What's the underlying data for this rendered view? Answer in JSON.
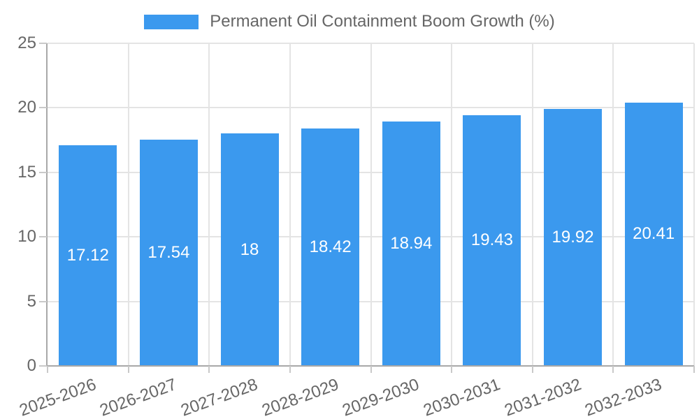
{
  "legend": {
    "label": "Permanent Oil Containment Boom Growth (%)"
  },
  "chart_data": {
    "type": "bar",
    "title": "Permanent Oil Containment Boom Growth (%)",
    "categories": [
      "2025-2026",
      "2026-2027",
      "2027-2028",
      "2028-2029",
      "2029-2030",
      "2030-2031",
      "2031-2032",
      "2032-2033"
    ],
    "values": [
      17.12,
      17.54,
      18,
      18.42,
      18.94,
      19.43,
      19.92,
      20.41
    ],
    "value_labels": [
      "17.12",
      "17.54",
      "18",
      "18.42",
      "18.94",
      "19.43",
      "19.92",
      "20.41"
    ],
    "series": [
      {
        "name": "Permanent Oil Containment Boom Growth (%)",
        "values": [
          17.12,
          17.54,
          18,
          18.42,
          18.94,
          19.43,
          19.92,
          20.41
        ]
      }
    ],
    "xlabel": "",
    "ylabel": "",
    "ylim": [
      0,
      25
    ],
    "yticks": [
      "0",
      "5",
      "10",
      "15",
      "20",
      "25"
    ],
    "grid": true,
    "legend_position": "top",
    "x_label_rotation_deg": -20,
    "colors": {
      "bar": "#3B99EE",
      "bar_value_text": "#FFFFFF",
      "axis_text": "#666666",
      "grid_line": "#E4E4E4",
      "axis_line": "#A8A8A8",
      "tick_mark": "#C9C9C9",
      "background": "#FFFFFF"
    }
  }
}
